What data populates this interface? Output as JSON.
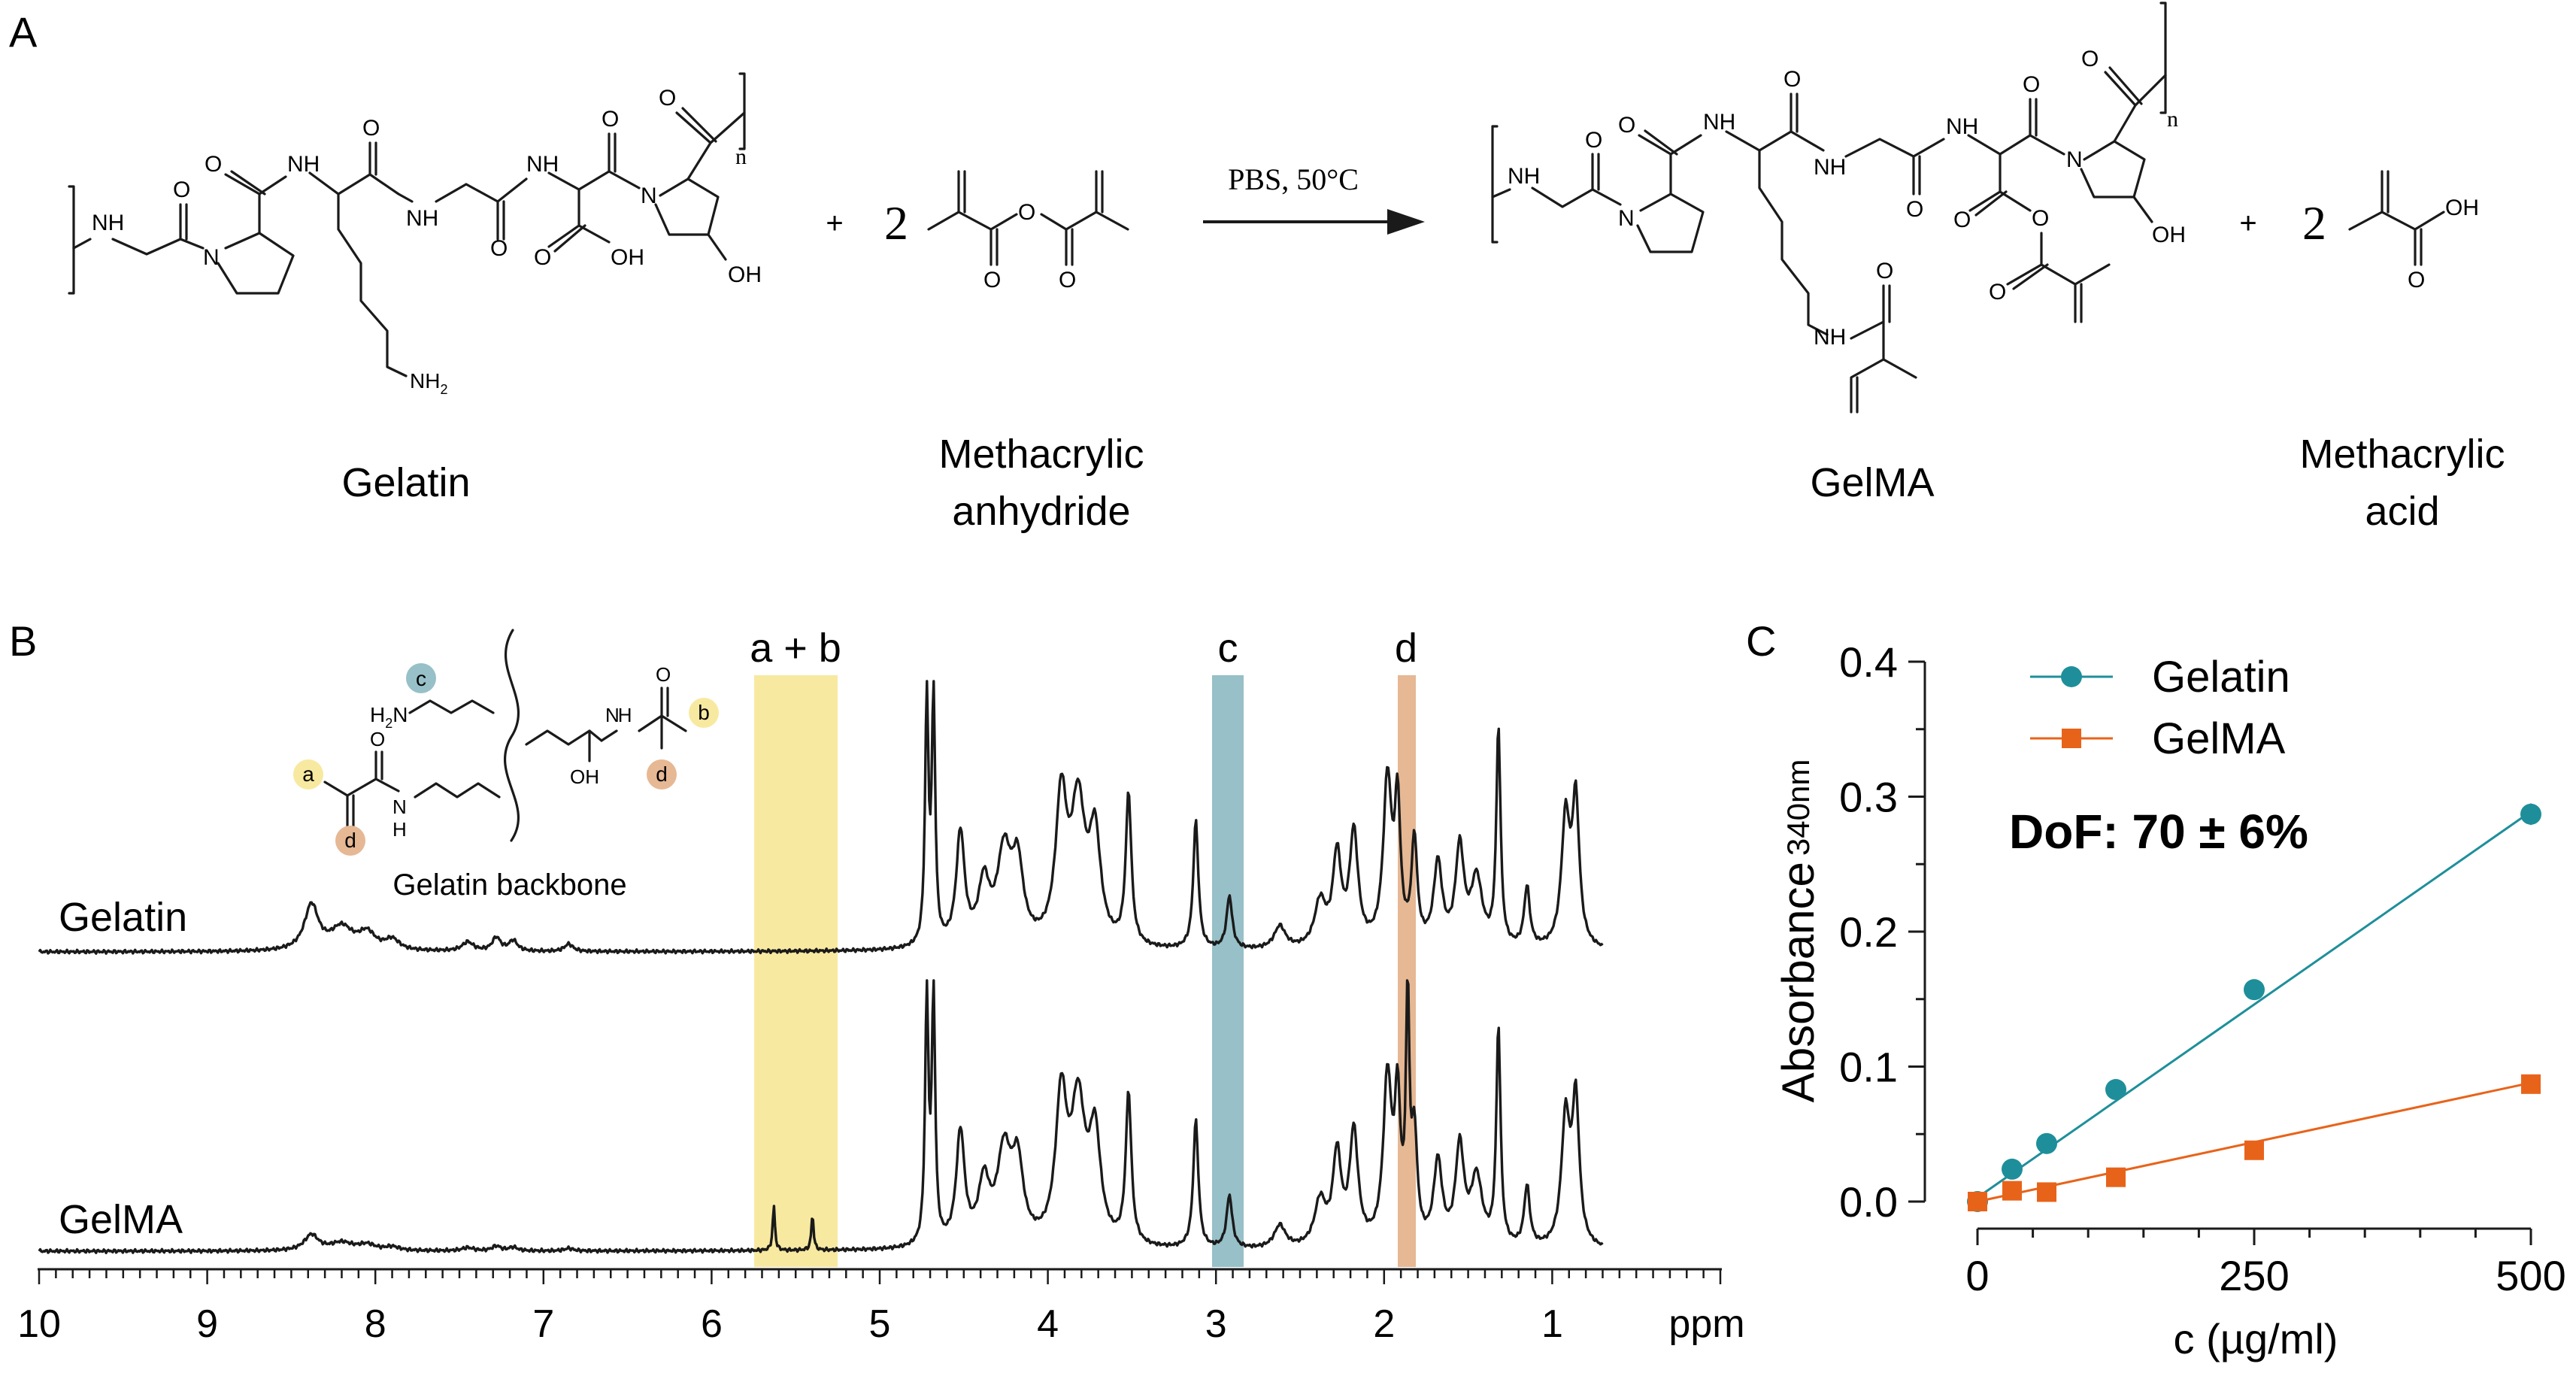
{
  "panels": {
    "a": "A",
    "b": "B",
    "c": "C"
  },
  "scheme": {
    "gelatin_name": "Gelatin",
    "plus_1": "+",
    "coef_1": "2",
    "anhydride_name_1": "Methacrylic",
    "anhydride_name_2": "anhydride",
    "conditions": "PBS, 50°C",
    "gelma_name": "GelMA",
    "plus_2": "+",
    "coef_2": "2",
    "acid_name_1": "Methacrylic",
    "acid_name_2": "acid",
    "atoms": {
      "nh": "NH",
      "n": "N",
      "o": "O",
      "oh": "OH",
      "nh2": "NH",
      "nh2_sub": "2",
      "sub_n": "n",
      "h2n": "H",
      "h2n_sub": "2",
      "h2n_n": "N",
      "h": "H"
    }
  },
  "nmr": {
    "inset_title": "Gelatin backbone",
    "labels": {
      "a": "a",
      "b": "b",
      "c": "c",
      "d": "d"
    },
    "trace_gelatin": "Gelatin",
    "trace_gelma": "GelMA",
    "region_ab": "a + b",
    "region_c": "c",
    "region_d": "d",
    "axis_unit": "ppm",
    "ticks": [
      "10",
      "9",
      "8",
      "7",
      "6",
      "5",
      "4",
      "3",
      "2",
      "1"
    ],
    "colors": {
      "ab": "#f8e9a0",
      "c": "#97c0c8",
      "d": "#e6b894"
    }
  },
  "chart_data": {
    "type": "scatter",
    "title": "",
    "xlabel": "c (µg/ml)",
    "ylabel": "Absorbance",
    "ylabel_sub": "340nm",
    "xlim": [
      0,
      500
    ],
    "ylim": [
      0,
      0.4
    ],
    "xticks": [
      "0",
      "250",
      "500"
    ],
    "yticks": [
      "0.0",
      "0.1",
      "0.2",
      "0.3",
      "0.4"
    ],
    "annotation": "DoF: 70 ± 6%",
    "legend_position": "top-right",
    "series": [
      {
        "name": "Gelatin",
        "marker": "circle",
        "color": "#1e8f9a",
        "x": [
          0,
          31.25,
          62.5,
          125,
          250,
          500
        ],
        "y": [
          0.0,
          0.024,
          0.043,
          0.083,
          0.157,
          0.287
        ],
        "err": [
          0,
          0,
          0,
          0,
          0,
          0.008
        ],
        "fit": [
          [
            0,
            0.003
          ],
          [
            500,
            0.289
          ]
        ]
      },
      {
        "name": "GelMA",
        "marker": "square",
        "color": "#e8631a",
        "x": [
          0,
          31.25,
          62.5,
          125,
          250,
          500
        ],
        "y": [
          0.0,
          0.008,
          0.007,
          0.018,
          0.038,
          0.087
        ],
        "err": [
          0,
          0,
          0,
          0,
          0,
          0.004
        ],
        "fit": [
          [
            0,
            0.0
          ],
          [
            500,
            0.088
          ]
        ]
      }
    ]
  }
}
